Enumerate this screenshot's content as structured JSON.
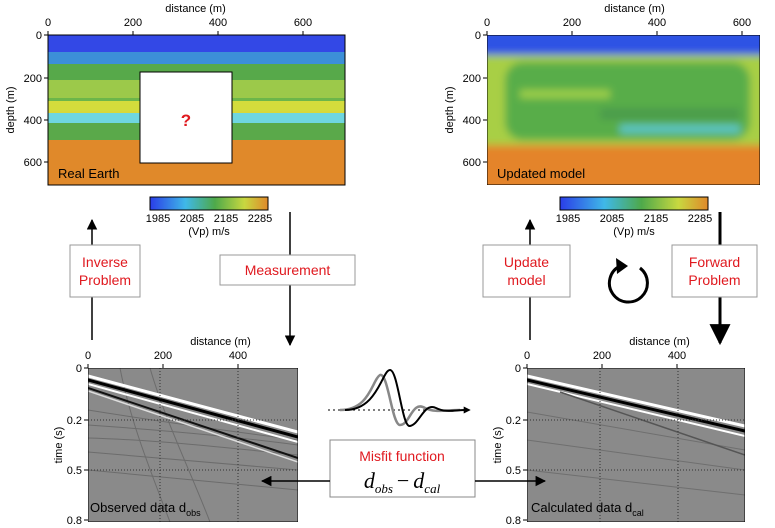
{
  "panels": {
    "real_earth": {
      "x_axis_label": "distance (m)",
      "x_ticks": [
        0,
        200,
        400,
        600
      ],
      "y_axis_label": "depth (m)",
      "y_ticks": [
        0,
        200,
        400,
        600
      ],
      "label": "Real Earth",
      "unknown_mark": "?"
    },
    "updated_model": {
      "x_axis_label": "distance (m)",
      "x_ticks": [
        0,
        200,
        400,
        600
      ],
      "y_axis_label": "depth (m)",
      "y_ticks": [
        0,
        200,
        400,
        600
      ],
      "label": "Updated model"
    },
    "observed_data": {
      "x_axis_label": "distance (m)",
      "x_ticks": [
        0,
        200,
        400
      ],
      "y_axis_label": "time (s)",
      "y_ticks": [
        0,
        0.2,
        0.5,
        0.8
      ],
      "label": "Observed data  d",
      "label_subscript": "obs"
    },
    "calculated_data": {
      "x_axis_label": "distance (m)",
      "x_ticks": [
        0,
        200,
        400
      ],
      "y_axis_label": "time (s)",
      "y_ticks": [
        0,
        0.2,
        0.5,
        0.8
      ],
      "label": "Calculated data  d",
      "label_subscript": "cal"
    }
  },
  "colorbars": [
    {
      "ticks": [
        1985,
        2085,
        2185,
        2285
      ],
      "label": "(Vp) m/s"
    },
    {
      "ticks": [
        1985,
        2085,
        2185,
        2285
      ],
      "label": "(Vp) m/s"
    }
  ],
  "boxes": {
    "inverse_problem": [
      "Inverse",
      "Problem"
    ],
    "measurement": [
      "Measurement"
    ],
    "update_model": [
      "Update",
      "model"
    ],
    "forward_problem": [
      "Forward",
      "Problem"
    ]
  },
  "misfit": {
    "title": "Misfit function",
    "term1": "d",
    "term1_sub": "obs",
    "operator": "−",
    "term2": "d",
    "term2_sub": "cal"
  }
}
